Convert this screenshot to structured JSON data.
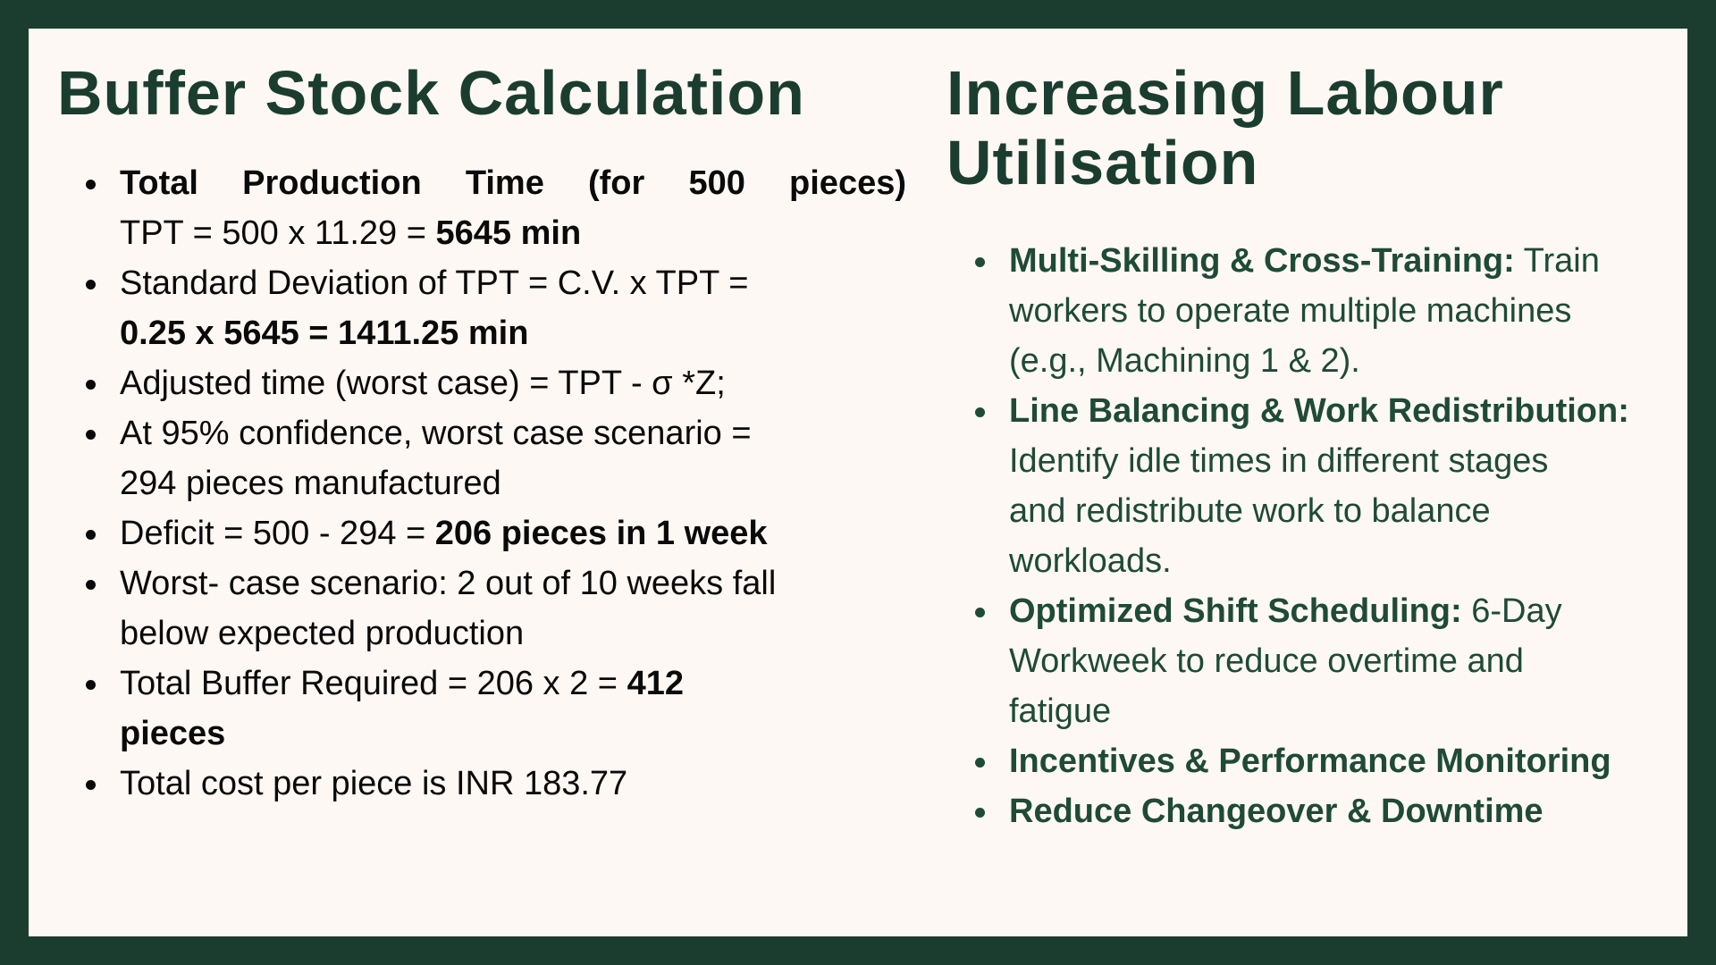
{
  "left": {
    "title": "Buffer Stock Calculation",
    "items": [
      {
        "line1": "Total Production Time (for 500 pieces)",
        "line2_prefix": "TPT = 500 x 11.29 = ",
        "line2_bold": "5645 min"
      },
      {
        "line1": "Standard Deviation of TPT =  C.V. x TPT =",
        "line2_bold": "0.25 x 5645 = 1411.25 min"
      },
      {
        "text": "Adjusted time (worst case) = TPT - σ *Z;"
      },
      {
        "line1": "At 95% confidence, worst case scenario =",
        "line2": "294 pieces manufactured"
      },
      {
        "prefix": "Deficit = 500 - 294 = ",
        "bold": "206 pieces in 1 week"
      },
      {
        "line1": "Worst- case scenario: 2 out of 10 weeks fall",
        "line2": "below expected production"
      },
      {
        "prefix": "Total Buffer Required = 206 x 2 = ",
        "bold": "412",
        "line2_bold": "pieces"
      },
      {
        "text": "Total cost per piece is INR 183.77"
      }
    ]
  },
  "right": {
    "title_line1": "Increasing Labour",
    "title_line2": "Utilisation",
    "items": [
      {
        "bold": "Multi-Skilling & Cross-Training:",
        "text_l1": " Train",
        "text_l2": "workers to operate multiple machines",
        "text_l3": "(e.g., Machining 1 & 2)."
      },
      {
        "bold": "Line Balancing & Work Redistribution:",
        "text_l2": "Identify idle times in different stages",
        "text_l3": "and redistribute work to balance",
        "text_l4": "workloads."
      },
      {
        "bold": "Optimized Shift Scheduling:",
        "text_l1": " 6-Day",
        "text_l2": "Workweek to reduce overtime and",
        "text_l3": "fatigue"
      },
      {
        "bold": "Incentives & Performance Monitoring"
      },
      {
        "bold": "Reduce Changeover & Downtime"
      }
    ]
  },
  "colors": {
    "frame": "#1b3d2f",
    "background": "#fdf8f3",
    "heading": "#1b3d2f",
    "left_text": "#0a0a0a",
    "right_text": "#1f4a38"
  }
}
